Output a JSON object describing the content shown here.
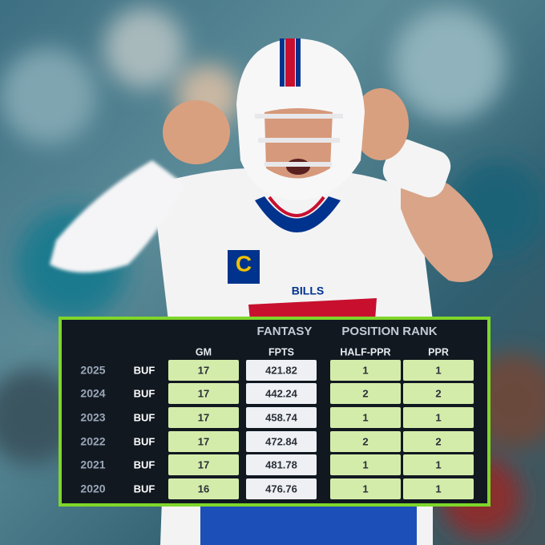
{
  "table": {
    "group_headers": [
      "FANTASY",
      "POSITION RANK"
    ],
    "columns": [
      "GM",
      "FPTS",
      "HALF-PPR",
      "PPR"
    ],
    "rows": [
      [
        "2025",
        "BUF",
        "17",
        "421.82",
        "1",
        "1"
      ],
      [
        "2024",
        "BUF",
        "17",
        "442.24",
        "2",
        "2"
      ],
      [
        "2023",
        "BUF",
        "17",
        "458.74",
        "1",
        "1"
      ],
      [
        "2022",
        "BUF",
        "17",
        "472.84",
        "2",
        "2"
      ],
      [
        "2021",
        "BUF",
        "17",
        "481.78",
        "1",
        "1"
      ],
      [
        "2020",
        "BUF",
        "16",
        "476.76",
        "1",
        "1"
      ]
    ]
  },
  "photo": {
    "jersey_text": "BILLS",
    "captain_patch": "C"
  }
}
